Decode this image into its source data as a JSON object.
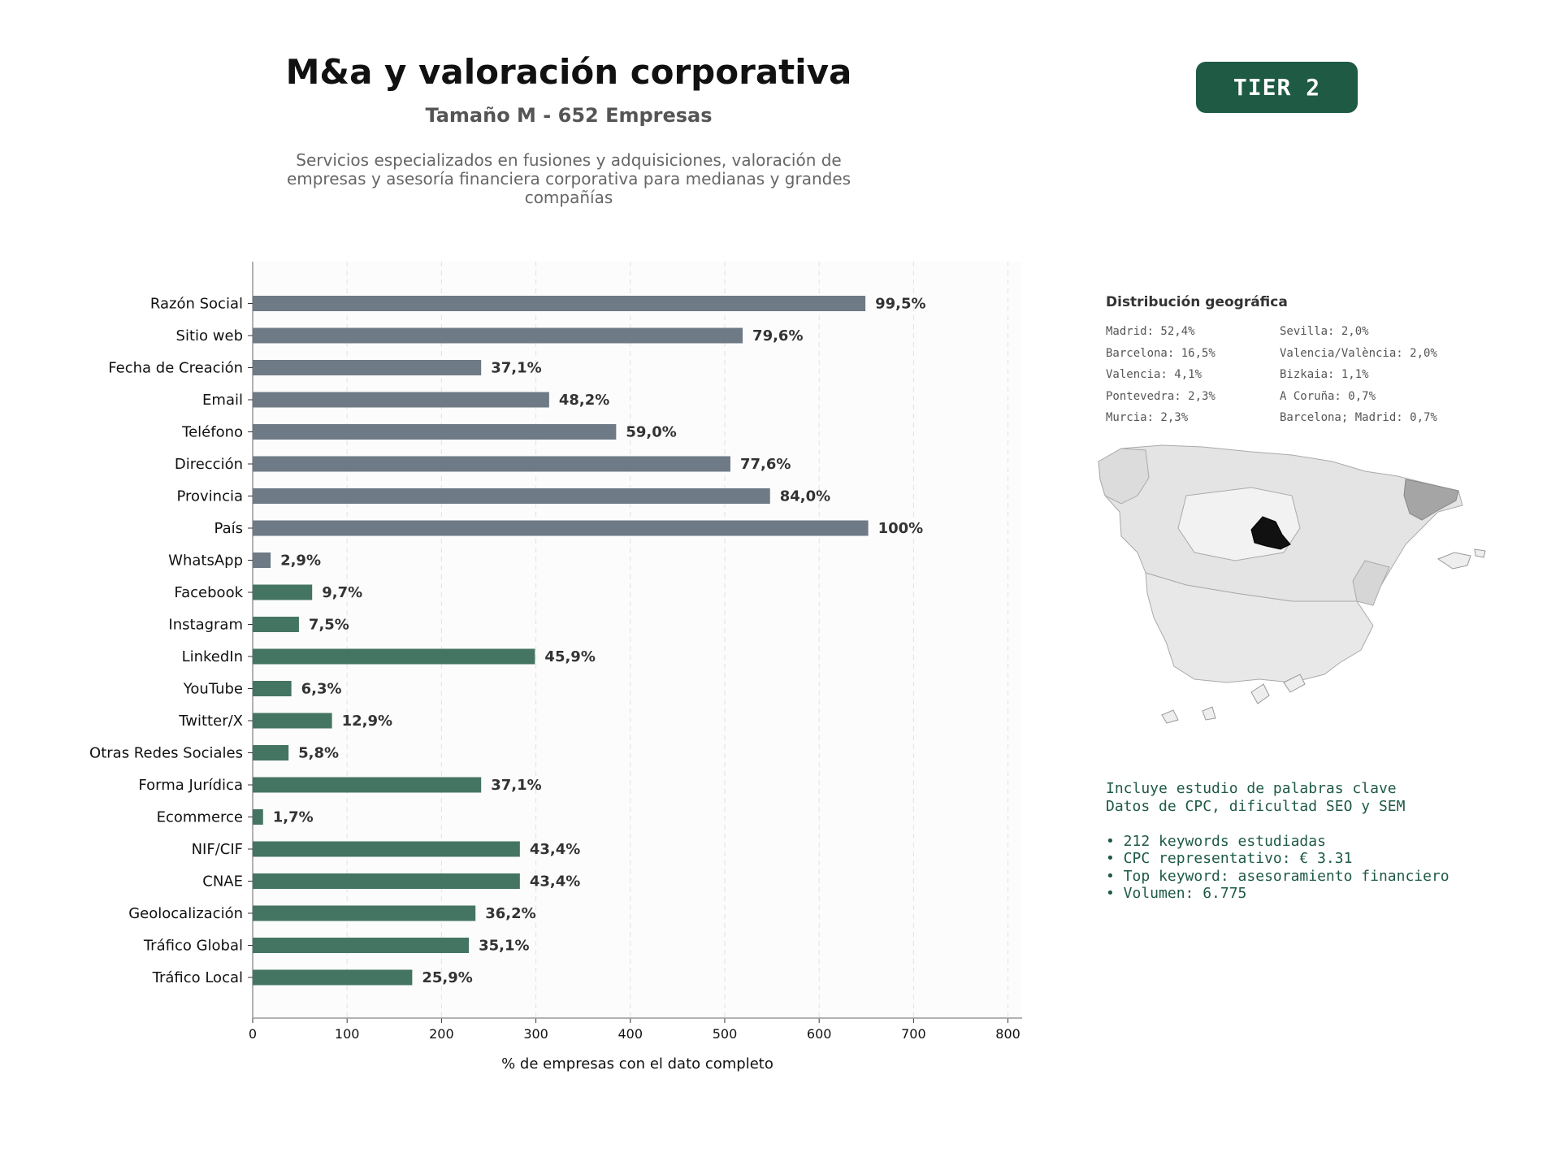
{
  "header": {
    "title": "M&a y valoración corporativa",
    "subtitle": "Tamaño M - 652 Empresas",
    "description": "Servicios especializados en fusiones y adquisiciones, valoración de empresas y asesoría financiera corporativa para medianas y grandes compañías",
    "tier": "TIER 2"
  },
  "chart_data": {
    "type": "bar",
    "orientation": "horizontal",
    "xlabel": "% de empresas con el dato completo",
    "xlim": [
      0,
      815
    ],
    "xticks": [
      0,
      100,
      200,
      300,
      400,
      500,
      600,
      700,
      800
    ],
    "grid": "vertical dashed",
    "categories": [
      "Razón Social",
      "Sitio web",
      "Fecha de Creación",
      "Email",
      "Teléfono",
      "Dirección",
      "Provincia",
      "País",
      "WhatsApp",
      "Facebook",
      "Instagram",
      "LinkedIn",
      "YouTube",
      "Twitter/X",
      "Otras Redes Sociales",
      "Forma Jurídica",
      "Ecommerce",
      "NIF/CIF",
      "CNAE",
      "Geolocalización",
      "Tráfico Global",
      "Tráfico Local"
    ],
    "values": [
      649,
      519,
      242,
      314,
      385,
      506,
      548,
      652,
      19,
      63,
      49,
      299,
      41,
      84,
      38,
      242,
      11,
      283,
      283,
      236,
      229,
      169
    ],
    "labels": [
      "99,5%",
      "79,6%",
      "37,1%",
      "48,2%",
      "59,0%",
      "77,6%",
      "84,0%",
      "100%",
      "2,9%",
      "9,7%",
      "7,5%",
      "45,9%",
      "6,3%",
      "12,9%",
      "5,8%",
      "37,1%",
      "1,7%",
      "43,4%",
      "43,4%",
      "36,2%",
      "35,1%",
      "25,9%"
    ],
    "colors": [
      "#6e7a85",
      "#6e7a85",
      "#6e7a85",
      "#6e7a85",
      "#6e7a85",
      "#6e7a85",
      "#6e7a85",
      "#6e7a85",
      "#6e7a85",
      "#447562",
      "#447562",
      "#447562",
      "#447562",
      "#447562",
      "#447562",
      "#447562",
      "#447562",
      "#447562",
      "#447562",
      "#447562",
      "#447562",
      "#447562"
    ]
  },
  "geo": {
    "title": "Distribución geográfica",
    "col1": [
      "Madrid: 52,4%",
      "Barcelona: 16,5%",
      "Valencia: 4,1%",
      "Pontevedra: 2,3%",
      "Murcia: 2,3%"
    ],
    "col2": [
      "Sevilla: 2,0%",
      "Valencia/València: 2,0%",
      "Bizkaia: 1,1%",
      "A Coruña: 0,7%",
      "Barcelona; Madrid: 0,7%"
    ]
  },
  "keywords": {
    "line1": "Incluye estudio de palabras clave",
    "line2": "Datos de CPC, dificultad SEO y SEM",
    "bullets": [
      "• 212 keywords estudiadas",
      "• CPC representativo: € 3.31",
      "• Top keyword: asesoramiento financiero",
      "• Volumen: 6.775"
    ]
  }
}
